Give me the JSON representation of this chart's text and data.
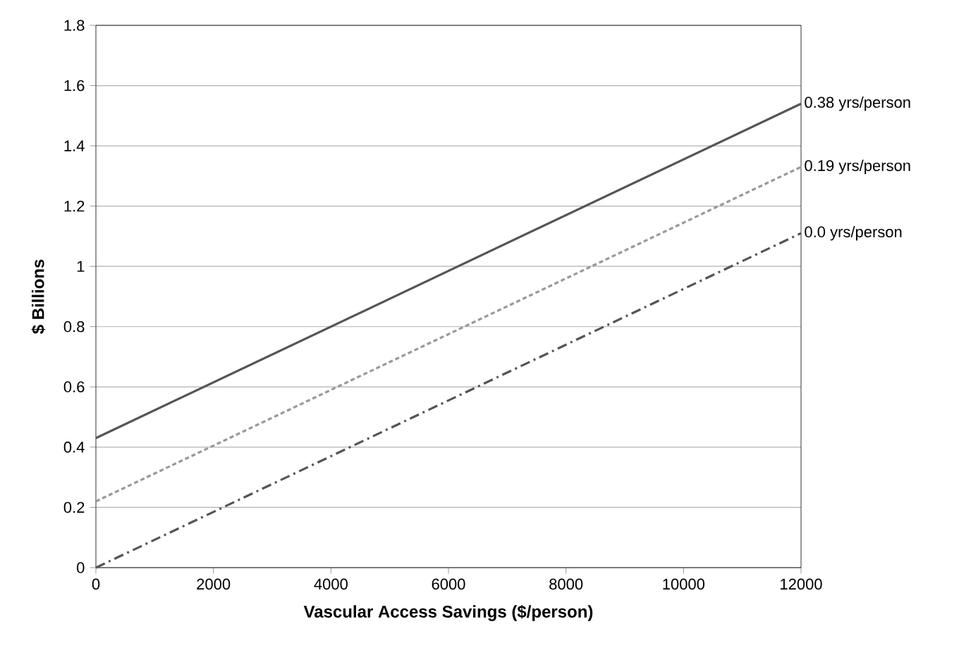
{
  "chart_data": {
    "type": "line",
    "xlabel": "Vascular Access Savings ($/person)",
    "ylabel": "$ Billions",
    "x": [
      0,
      12000
    ],
    "xlim": [
      0,
      12000
    ],
    "xticks": [
      0,
      2000,
      4000,
      6000,
      8000,
      10000,
      12000
    ],
    "ylim": [
      0,
      1.8
    ],
    "yticks": [
      0,
      0.2,
      0.4,
      0.6,
      0.8,
      1,
      1.2,
      1.4,
      1.6,
      1.8
    ],
    "grid": "y",
    "legend": false,
    "marker": "none",
    "series": [
      {
        "name": "0.38 yrs/person",
        "color": "#555555",
        "line_style": "solid",
        "values": [
          0.43,
          1.54
        ]
      },
      {
        "name": "0.19 yrs/person",
        "color": "#999999",
        "line_style": "dotted",
        "values": [
          0.22,
          1.33
        ]
      },
      {
        "name": "0.0 yrs/person",
        "color": "#555555",
        "line_style": "dashed",
        "values": [
          0.0,
          1.11
        ]
      }
    ]
  }
}
